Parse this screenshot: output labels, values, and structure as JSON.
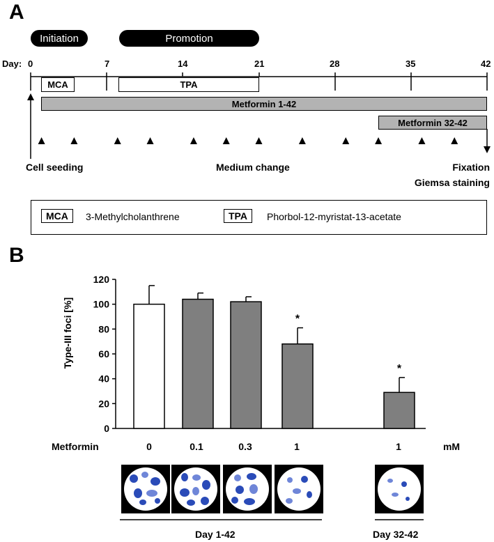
{
  "panel_a": {
    "letter": "A",
    "phases": {
      "initiation": "Initiation",
      "promotion": "Promotion"
    },
    "day_label": "Day:",
    "ticks": [
      "0",
      "7",
      "14",
      "21",
      "28",
      "35",
      "42"
    ],
    "treatments": {
      "mca": "MCA",
      "tpa": "TPA",
      "metformin_full": "Metformin 1-42",
      "metformin_late": "Metformin 32-42"
    },
    "medium_change_days": [
      1,
      4,
      8,
      11,
      15,
      18,
      21,
      25,
      29,
      32,
      36,
      39
    ],
    "labels": {
      "cell_seeding": "Cell seeding",
      "medium_change": "Medium change",
      "fixation": "Fixation",
      "giemsa": "Giemsa staining"
    },
    "legend": [
      {
        "key": "MCA",
        "text": "3-Methylcholanthrene"
      },
      {
        "key": "TPA",
        "text": "Phorbol-12-myristat-13-acetate"
      }
    ]
  },
  "panel_b": {
    "letter": "B",
    "x_row_label": "Metformin",
    "x_unit": "mM",
    "group_labels": {
      "group1": "Day 1-42",
      "group2": "Day 32-42"
    }
  },
  "chart_data": {
    "type": "bar",
    "ylabel": "Type-III foci [%]",
    "ylim": [
      0,
      120
    ],
    "yticks": [
      "0",
      "20",
      "40",
      "60",
      "80",
      "100",
      "120"
    ],
    "categories": [
      "0",
      "0.1",
      "0.3",
      "1",
      "1"
    ],
    "values": [
      100,
      104,
      102,
      68,
      29
    ],
    "errors": [
      15,
      5,
      4,
      13,
      12
    ],
    "significance": [
      "",
      "",
      "",
      "*",
      "*"
    ],
    "colors": [
      "#ffffff",
      "#7f7f7f",
      "#7f7f7f",
      "#7f7f7f",
      "#7f7f7f"
    ]
  }
}
